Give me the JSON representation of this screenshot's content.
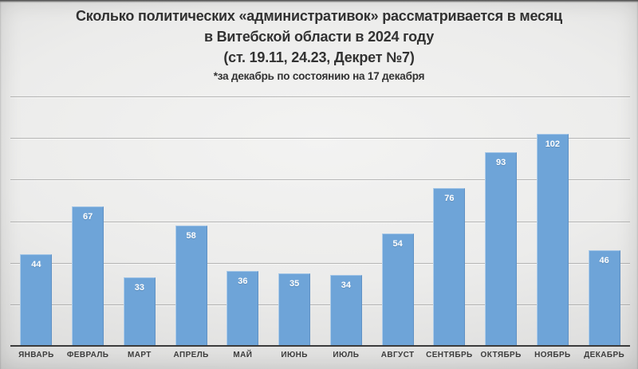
{
  "title": {
    "line1": "Сколько политических «административок» рассматривается в месяц",
    "line2": "в Витебской области в 2024 году",
    "line3": "(ст. 19.11, 24.23, Декрет №7)",
    "note": "*за декабрь по состоянию на 17 декабря"
  },
  "chart_data": {
    "type": "bar",
    "categories": [
      "ЯНВАРЬ",
      "ФЕВРАЛЬ",
      "МАРТ",
      "АПРЕЛЬ",
      "МАЙ",
      "ИЮНЬ",
      "ИЮЛЬ",
      "АВГУСТ",
      "СЕНТЯБРЬ",
      "ОКТЯБРЬ",
      "НОЯБРЬ",
      "ДЕКАБРЬ"
    ],
    "values": [
      44,
      67,
      33,
      58,
      36,
      35,
      34,
      54,
      76,
      93,
      102,
      46
    ],
    "title": "Сколько политических «административок» рассматривается в месяц в Витебской области в 2024 году (ст. 19.11, 24.23, Декрет №7)",
    "subtitle": "*за декабрь по состоянию на 17 декабря",
    "xlabel": "",
    "ylabel": "",
    "ylim": [
      0,
      120
    ],
    "grid_step": 20,
    "grid": true,
    "legend": false,
    "value_labels": "inside-top",
    "bar_color": "#6ea4d8",
    "value_label_color": "#ffffff",
    "axis_line_color": "#3c3c3c",
    "category_label_color": "#3d3d3d",
    "background_color": "#e3e3e2"
  }
}
